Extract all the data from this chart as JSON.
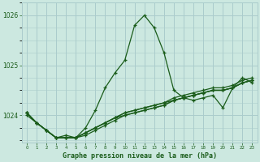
{
  "title": "Graphe pression niveau de la mer (hPa)",
  "background_color": "#cce8e0",
  "grid_color": "#aacccc",
  "line_color": "#1a5c1a",
  "x_labels": [
    "0",
    "1",
    "2",
    "3",
    "4",
    "5",
    "6",
    "7",
    "8",
    "9",
    "10",
    "11",
    "12",
    "13",
    "14",
    "15",
    "16",
    "17",
    "18",
    "19",
    "20",
    "21",
    "22",
    "23"
  ],
  "ylim": [
    1023.45,
    1026.25
  ],
  "yticks": [
    1024,
    1025,
    1026
  ],
  "figsize": [
    3.2,
    2.0
  ],
  "dpi": 100,
  "series": [
    [
      1024.0,
      1023.85,
      1023.7,
      1023.55,
      1023.6,
      1023.55,
      1023.75,
      1024.1,
      1024.55,
      1024.85,
      1025.1,
      1025.8,
      1026.0,
      1025.75,
      1025.25,
      1024.5,
      1024.35,
      1024.3,
      1024.35,
      1024.4,
      1024.15,
      1024.55,
      1024.75,
      1024.65
    ],
    [
      1024.05,
      1023.85,
      1023.7,
      1023.55,
      1023.55,
      1023.55,
      1023.65,
      1023.75,
      1023.85,
      1023.95,
      1024.05,
      1024.1,
      1024.15,
      1024.2,
      1024.25,
      1024.3,
      1024.35,
      1024.4,
      1024.45,
      1024.5,
      1024.5,
      1024.55,
      1024.65,
      1024.7
    ],
    [
      1024.05,
      1023.85,
      1023.7,
      1023.55,
      1023.55,
      1023.55,
      1023.65,
      1023.75,
      1023.85,
      1023.95,
      1024.05,
      1024.1,
      1024.15,
      1024.2,
      1024.25,
      1024.35,
      1024.4,
      1024.45,
      1024.5,
      1024.55,
      1024.55,
      1024.6,
      1024.7,
      1024.75
    ],
    [
      1024.05,
      1023.85,
      1023.7,
      1023.55,
      1023.55,
      1023.55,
      1023.6,
      1023.7,
      1023.8,
      1023.9,
      1024.0,
      1024.05,
      1024.1,
      1024.15,
      1024.2,
      1024.3,
      1024.35,
      1024.4,
      1024.45,
      1024.5,
      1024.5,
      1024.55,
      1024.65,
      1024.7
    ],
    [
      1024.05,
      1023.85,
      1023.7,
      1023.55,
      1023.55,
      1023.55,
      1023.65,
      1023.75,
      1023.85,
      1023.95,
      1024.0,
      1024.05,
      1024.1,
      1024.15,
      1024.2,
      1024.3,
      1024.35,
      1024.4,
      1024.45,
      1024.5,
      1024.5,
      1024.55,
      1024.65,
      1024.7
    ]
  ]
}
